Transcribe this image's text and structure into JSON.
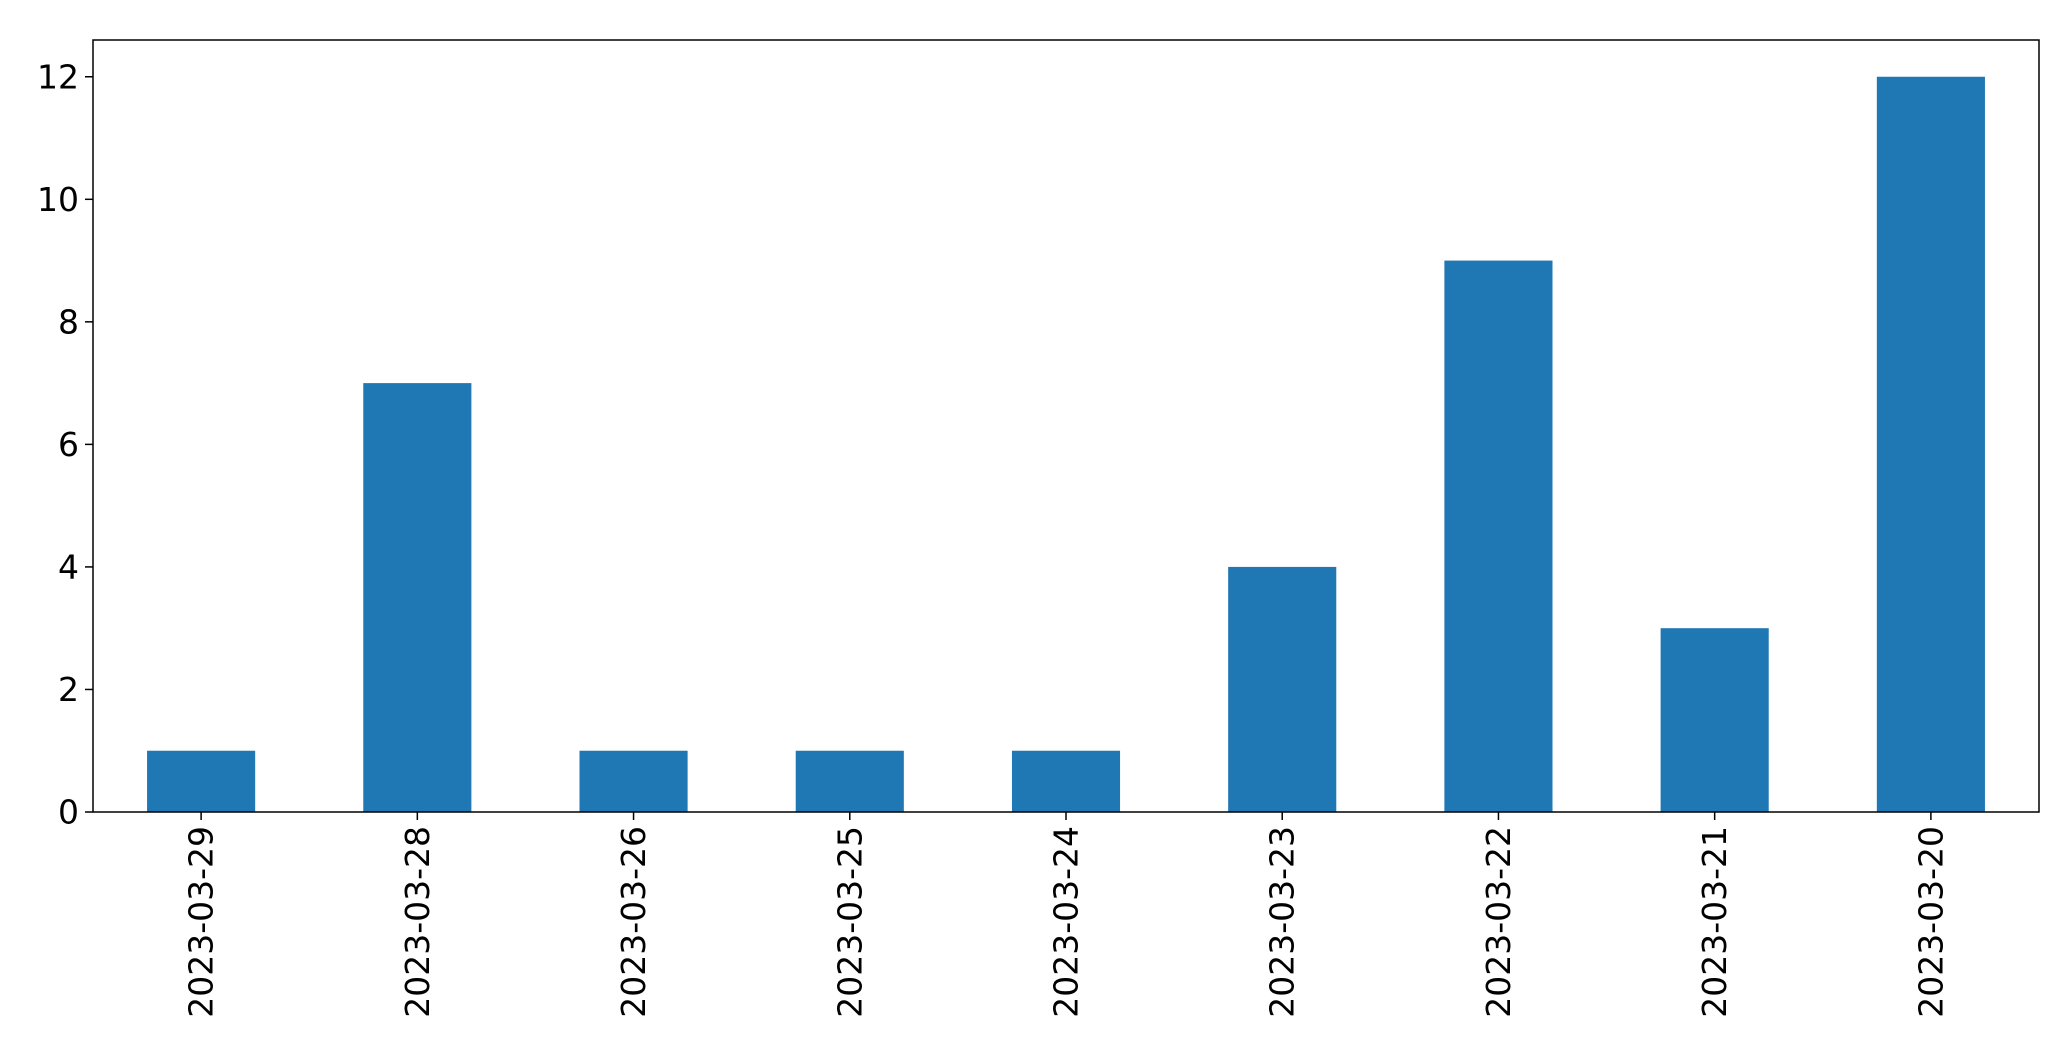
{
  "chart_data": {
    "type": "bar",
    "categories": [
      "2023-03-29",
      "2023-03-28",
      "2023-03-26",
      "2023-03-25",
      "2023-03-24",
      "2023-03-23",
      "2023-03-22",
      "2023-03-21",
      "2023-03-20"
    ],
    "values": [
      1,
      7,
      1,
      1,
      1,
      4,
      9,
      3,
      12
    ],
    "title": "",
    "xlabel": "",
    "ylabel": "",
    "ylim": [
      0,
      12.6
    ],
    "yticks": [
      0,
      2,
      4,
      6,
      8,
      10,
      12
    ],
    "grid": false,
    "legend": "none",
    "bar_color": "#1f77b4",
    "x_tick_rotation": "vertical"
  }
}
